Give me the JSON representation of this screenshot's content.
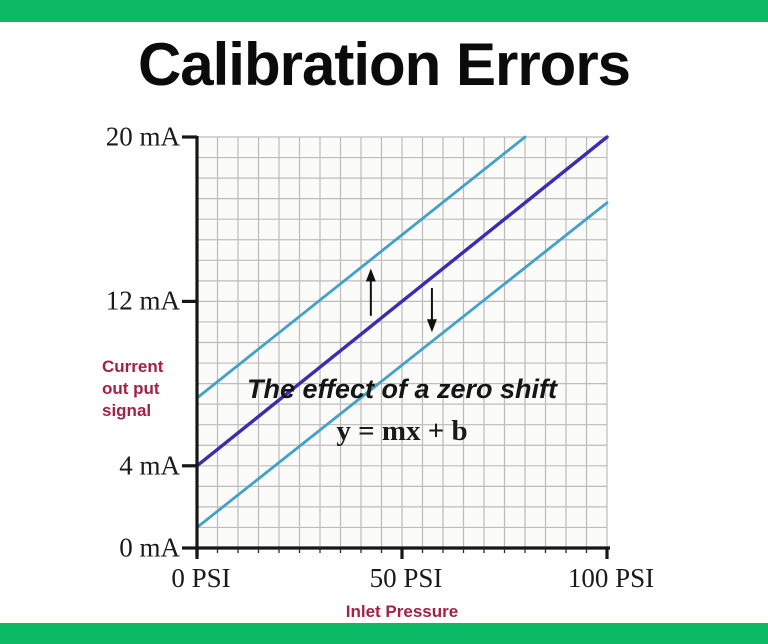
{
  "page": {
    "title": "Calibration Errors",
    "accent_green": "#0cb964",
    "label_red": "#a32146"
  },
  "chart_data": {
    "type": "line",
    "title": "Calibration Errors",
    "xlabel": "Inlet Pressure",
    "ylabel": "Current out put signal",
    "x_unit": "PSI",
    "y_unit": "mA",
    "xlim": [
      0,
      100
    ],
    "ylim": [
      0,
      20
    ],
    "grid": {
      "visible": true,
      "x_step": 5,
      "y_step": 1,
      "color": "#bcbcbc"
    },
    "x_ticks": [
      {
        "value": 0,
        "label": "0 PSI"
      },
      {
        "value": 50,
        "label": "50 PSI"
      },
      {
        "value": 100,
        "label": "100 PSI"
      }
    ],
    "y_ticks": [
      {
        "value": 20,
        "label": "20 mA"
      },
      {
        "value": 12,
        "label": "12 mA"
      },
      {
        "value": 4,
        "label": "4 mA"
      },
      {
        "value": 0,
        "label": "0 mA"
      }
    ],
    "series": [
      {
        "name": "ideal-calibration-line",
        "color": "#3a2db1",
        "width": 3.4,
        "points": [
          [
            0,
            4
          ],
          [
            100,
            20
          ]
        ]
      },
      {
        "name": "zero-shift-up-line",
        "color": "#42a1c8",
        "width": 2.8,
        "points": [
          [
            0,
            7.3
          ],
          [
            80,
            20
          ]
        ]
      },
      {
        "name": "zero-shift-down-line",
        "color": "#42a1c8",
        "width": 2.8,
        "points": [
          [
            0,
            1.0
          ],
          [
            100,
            16.8
          ]
        ]
      }
    ],
    "annotations": {
      "shift_label": "The effect of a zero shift",
      "equation": "y = mx + b",
      "arrows": [
        {
          "direction": "up",
          "x": 42.4,
          "y_from": 11.3,
          "y_to": 13.6
        },
        {
          "direction": "down",
          "x": 57.3,
          "y_from": 12.65,
          "y_to": 10.5
        }
      ]
    },
    "legend": {
      "visible": false
    }
  }
}
